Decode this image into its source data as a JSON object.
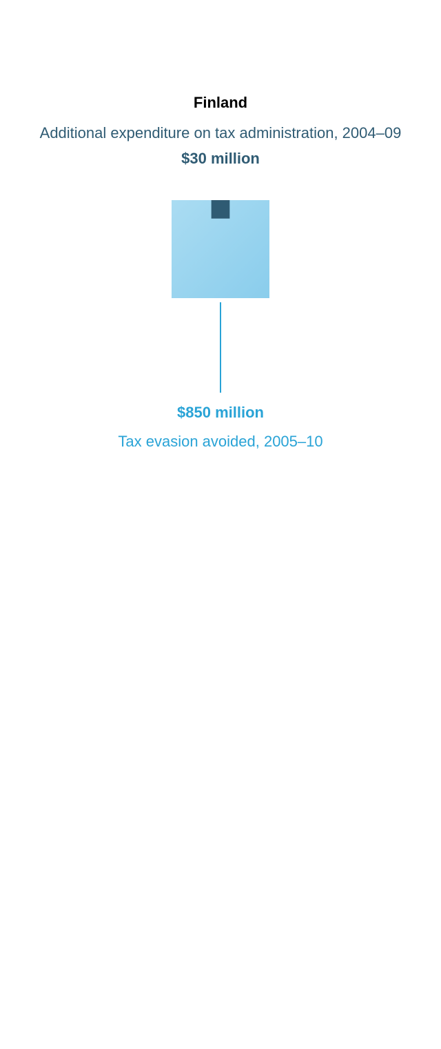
{
  "colors": {
    "expenditure": "#2f5b73",
    "evasion_light": "#aadcf2",
    "evasion_dark": "#8acdec",
    "evasion_text": "#29a3d6",
    "connector": "#29a3d6"
  },
  "chart_data": {
    "type": "area-comparison",
    "title": "Finland",
    "items": [
      {
        "label": "Additional expenditure on tax administration, 2004–09",
        "value": 30,
        "value_label": "$30 million"
      },
      {
        "label": "Tax evasion avoided, 2005–10",
        "value": 850,
        "value_label": "$850 million"
      }
    ],
    "unit": "million USD"
  }
}
